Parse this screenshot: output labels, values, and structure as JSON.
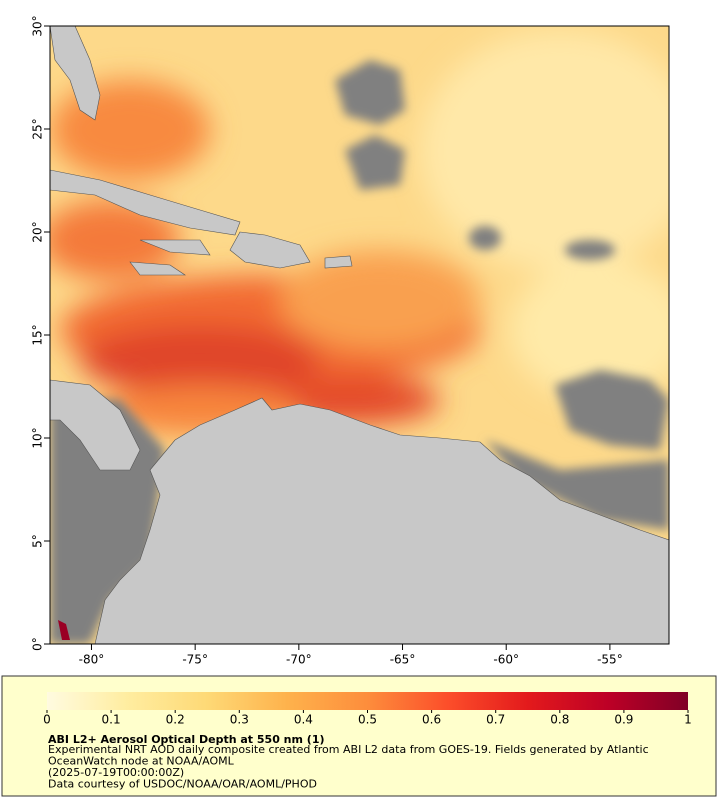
{
  "map": {
    "xlim": [
      -82,
      -52.15
    ],
    "ylim": [
      0,
      30
    ],
    "xticks": [
      {
        "value": -80,
        "label": "-80°"
      },
      {
        "value": -75,
        "label": "-75°"
      },
      {
        "value": -70,
        "label": "-70°"
      },
      {
        "value": -65,
        "label": "-65°"
      },
      {
        "value": -60,
        "label": "-60°"
      },
      {
        "value": -55,
        "label": "-55°"
      }
    ],
    "yticks": [
      {
        "value": 0,
        "label": "0°"
      },
      {
        "value": 5,
        "label": "5°"
      },
      {
        "value": 10,
        "label": "10°"
      },
      {
        "value": 15,
        "label": "15°"
      },
      {
        "value": 20,
        "label": "20°"
      },
      {
        "value": 25,
        "label": "25°"
      },
      {
        "value": 30,
        "label": "30°"
      }
    ]
  },
  "colorbar": {
    "lim": [
      0,
      1
    ],
    "ticks": [
      0,
      0.1,
      0.2,
      0.3,
      0.4,
      0.5,
      0.6,
      0.7,
      0.8,
      0.9,
      1
    ],
    "colors": [
      "#fffbe0",
      "#ffeda0",
      "#fed976",
      "#feb24c",
      "#fd8d3c",
      "#fc4e2a",
      "#e31a1c",
      "#bd0026",
      "#800026"
    ]
  },
  "caption": {
    "title": "ABI L2+ Aerosol Optical Depth at 550 nm (1)",
    "lines": [
      "Experimental NRT AOD daily composite created from ABI L2 data from GOES-19. Fields generated by Atlantic",
      "OceanWatch node at NOAA/AOML",
      "(2025-07-19T00:00:00Z)",
      "Data courtesy of USDOC/NOAA/OAR/AOML/PHOD"
    ]
  }
}
